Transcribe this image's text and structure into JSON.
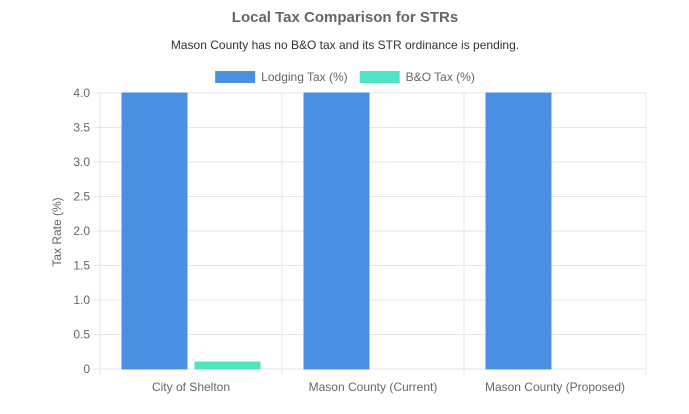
{
  "chart_data": {
    "type": "bar",
    "title": "Local Tax Comparison for STRs",
    "subtitle": "Mason County has no B&O tax and its STR ordinance is pending.",
    "ylabel": "Tax Rate (%)",
    "xlabel": "",
    "categories": [
      "City of Shelton",
      "Mason County (Current)",
      "Mason County (Proposed)"
    ],
    "ylim": [
      0,
      4
    ],
    "yticks": [
      "0",
      "0.5",
      "1.0",
      "1.5",
      "2.0",
      "2.5",
      "3.0",
      "3.5",
      "4.0"
    ],
    "grid": true,
    "legend_position": "top",
    "series": [
      {
        "name": "Lodging Tax (%)",
        "values": [
          4,
          4,
          4
        ],
        "color": "#4a90e2"
      },
      {
        "name": "B&O Tax (%)",
        "values": [
          0.1,
          0,
          0
        ],
        "color": "#50e3c2"
      }
    ]
  }
}
